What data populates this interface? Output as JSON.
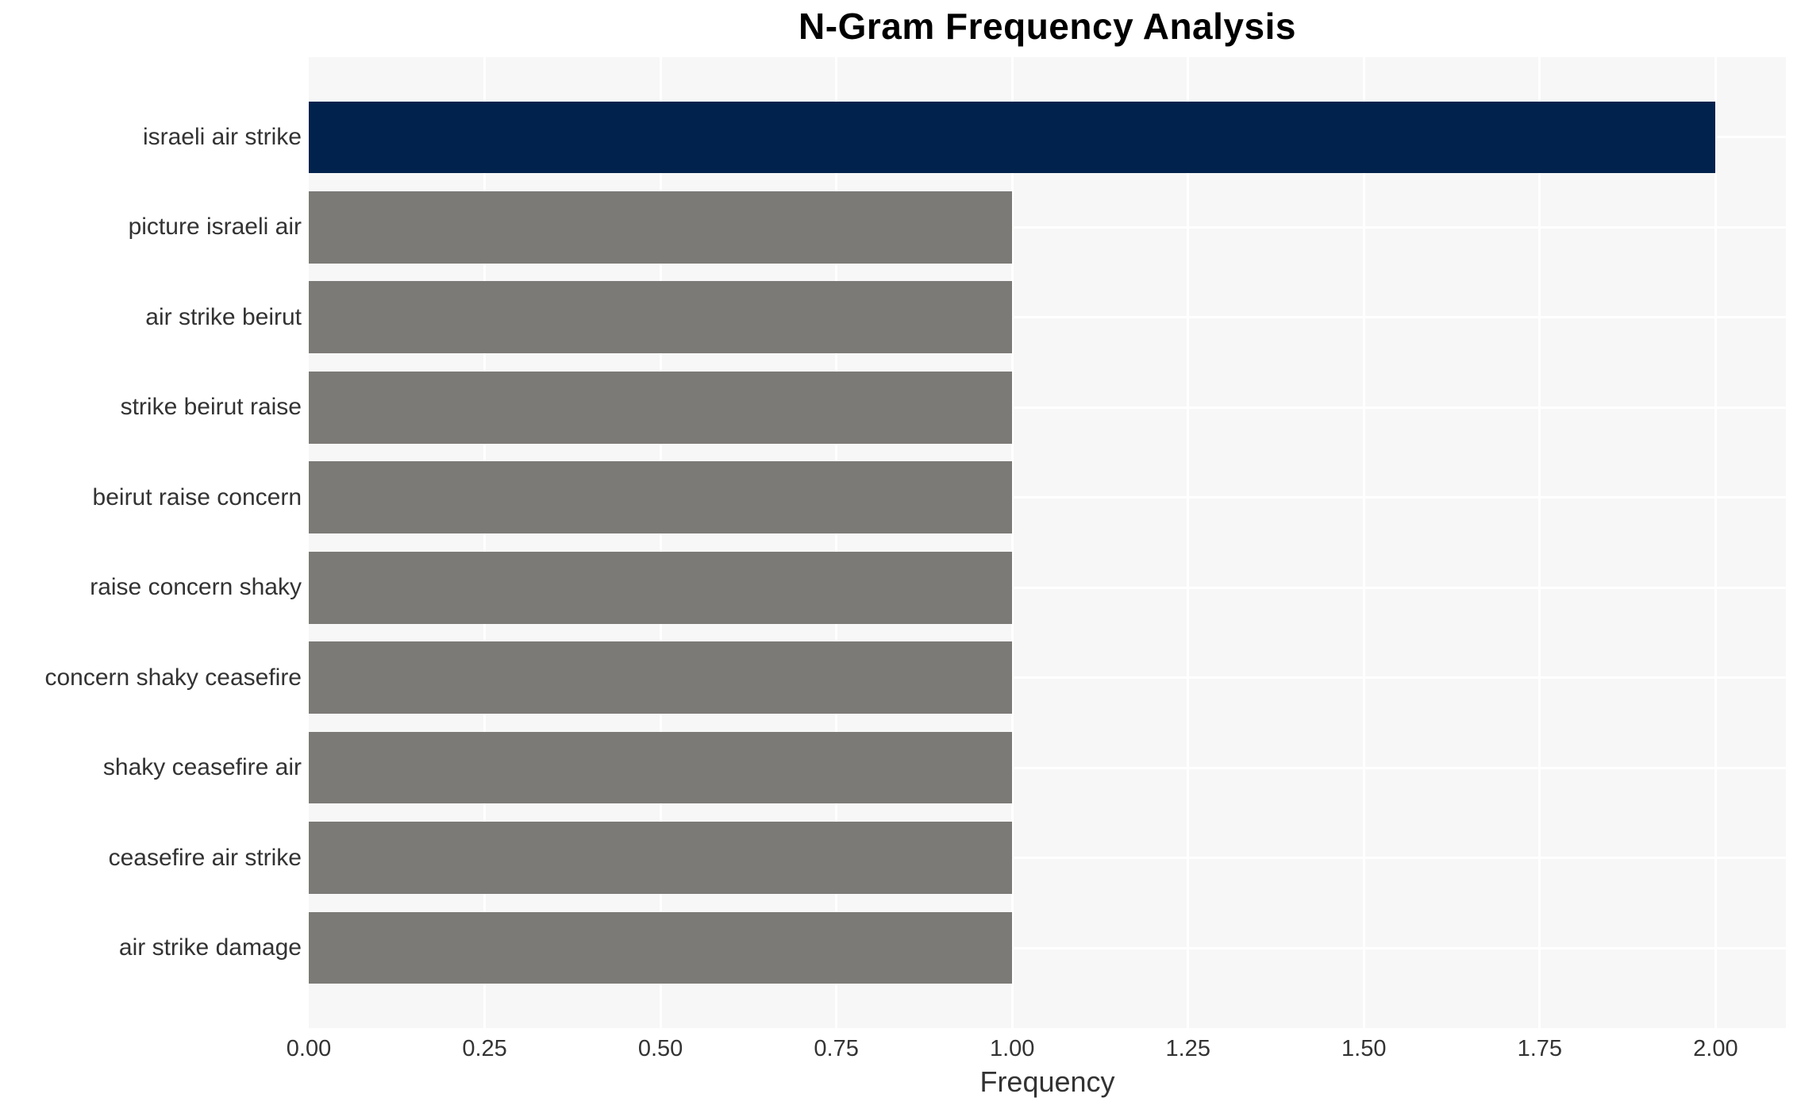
{
  "chart_data": {
    "type": "bar",
    "orientation": "horizontal",
    "title": "N-Gram Frequency Analysis",
    "xlabel": "Frequency",
    "ylabel": "",
    "categories": [
      "israeli air strike",
      "picture israeli air",
      "air strike beirut",
      "strike beirut raise",
      "beirut raise concern",
      "raise concern shaky",
      "concern shaky ceasefire",
      "shaky ceasefire air",
      "ceasefire air strike",
      "air strike damage"
    ],
    "values": [
      2,
      1,
      1,
      1,
      1,
      1,
      1,
      1,
      1,
      1
    ],
    "bar_colors": [
      "#01224d",
      "#7c7a77",
      "#7c7a77",
      "#7c7a77",
      "#7c7a77",
      "#7c7a77",
      "#7c7a77",
      "#7c7a77",
      "#7c7a77",
      "#7c7a77"
    ],
    "xlim": [
      0,
      2.1
    ],
    "xticks": [
      "0.00",
      "0.25",
      "0.50",
      "0.75",
      "1.00",
      "1.25",
      "1.50",
      "1.75",
      "2.00"
    ],
    "xtick_values": [
      0,
      0.25,
      0.5,
      0.75,
      1.0,
      1.25,
      1.5,
      1.75,
      2.0
    ],
    "grid": true,
    "gridline_color": "#ffffff",
    "plot_background": "#f7f7f7",
    "figure_background": "#ffffff",
    "legend": false,
    "colors": {
      "highlight_bar": "#01224d",
      "default_bar": "#7c7a77",
      "tick_text": "#333333",
      "title_text": "#000000"
    }
  }
}
